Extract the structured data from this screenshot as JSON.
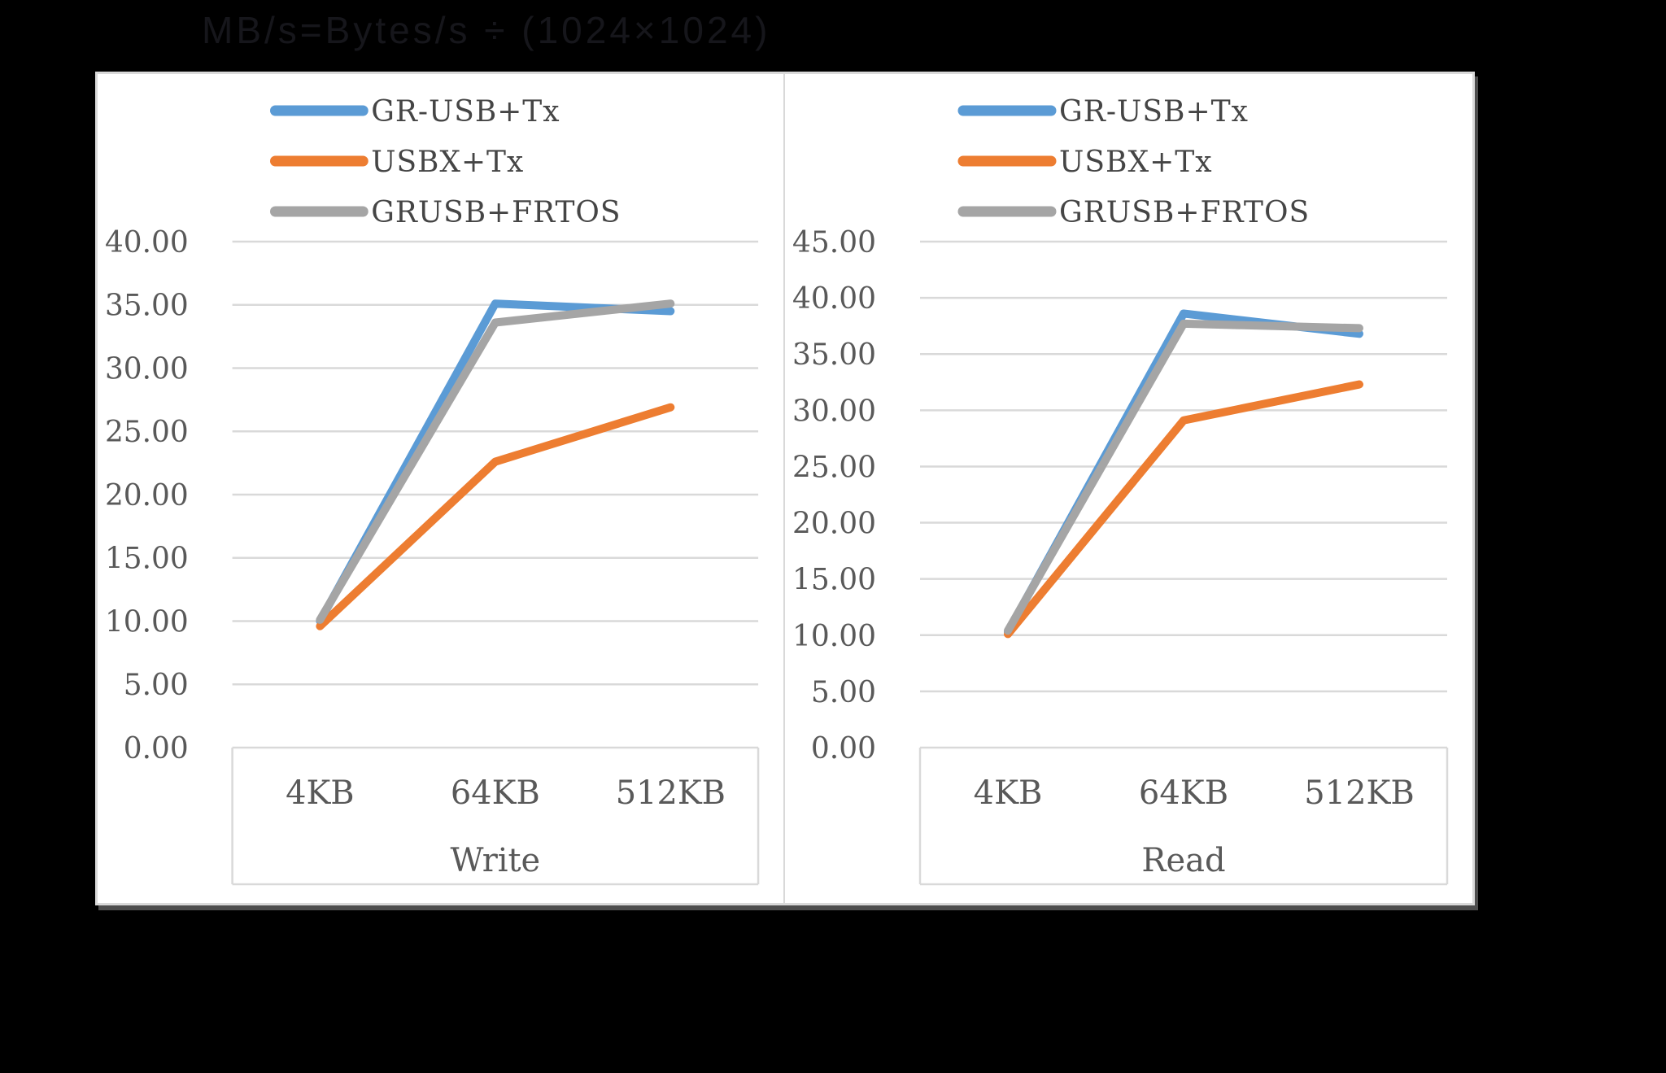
{
  "title": "MB/s=Bytes/s ÷ (1024×1024)",
  "colors": {
    "background": "#000000",
    "panel": "#ffffff",
    "grid": "#d9d9d9",
    "tick_label": "#595959",
    "legend_label": "#454545",
    "title": "#16161b",
    "series_blue": "#5B9BD5",
    "series_orange": "#ED7D31",
    "series_gray": "#A5A5A5"
  },
  "chart_data": [
    {
      "type": "line",
      "group_label": "Write",
      "categories": [
        "4KB",
        "64KB",
        "512KB"
      ],
      "xlabel": "Write",
      "ylabel": "",
      "ylim": [
        0,
        40
      ],
      "y_tick_step": 5,
      "y_tick_labels": [
        "0.00",
        "5.00",
        "10.00",
        "15.00",
        "20.00",
        "25.00",
        "30.00",
        "35.00",
        "40.00"
      ],
      "grid": true,
      "legend_position": "top",
      "series": [
        {
          "name": "GR-USB+Tx",
          "color": "#5B9BD5",
          "values": [
            10.0,
            35.1,
            34.5
          ]
        },
        {
          "name": "USBX+Tx",
          "color": "#ED7D31",
          "values": [
            9.6,
            22.6,
            26.9
          ]
        },
        {
          "name": "GRUSB+FRTOS",
          "color": "#A5A5A5",
          "values": [
            10.1,
            33.6,
            35.1
          ]
        }
      ]
    },
    {
      "type": "line",
      "group_label": "Read",
      "categories": [
        "4KB",
        "64KB",
        "512KB"
      ],
      "xlabel": "Read",
      "ylabel": "",
      "ylim": [
        0,
        45
      ],
      "y_tick_step": 5,
      "y_tick_labels": [
        "0.00",
        "5.00",
        "10.00",
        "15.00",
        "20.00",
        "25.00",
        "30.00",
        "35.00",
        "40.00",
        "45.00"
      ],
      "grid": true,
      "legend_position": "top",
      "series": [
        {
          "name": "GR-USB+Tx",
          "color": "#5B9BD5",
          "values": [
            10.3,
            38.6,
            36.8
          ]
        },
        {
          "name": "USBX+Tx",
          "color": "#ED7D31",
          "values": [
            10.1,
            29.1,
            32.3
          ]
        },
        {
          "name": "GRUSB+FRTOS",
          "color": "#A5A5A5",
          "values": [
            10.4,
            37.7,
            37.3
          ]
        }
      ]
    }
  ]
}
